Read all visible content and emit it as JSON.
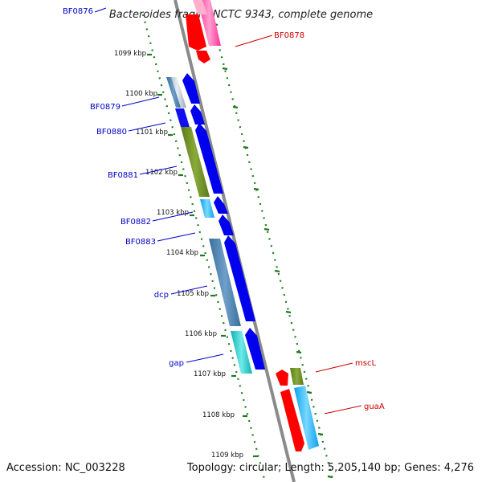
{
  "title": "Bacteroides fragilis NCTC 9343, complete genome",
  "footer": {
    "accession": "Accession: NC_003228",
    "topology": "Topology: circular; Length: 5,205,140 bp; Genes: 4,276"
  },
  "ticks": [
    "1099 kbp",
    "1100 kbp",
    "1101 kbp",
    "1102 kbp",
    "1103 kbp",
    "1104 kbp",
    "1105 kbp",
    "1106 kbp",
    "1107 kbp",
    "1108 kbp",
    "1109 kbp"
  ],
  "left_genes": [
    "BF0876",
    "BF0879",
    "BF0880",
    "BF0881",
    "BF0882",
    "BF0883",
    "dcp",
    "gap"
  ],
  "right_genes": [
    "BF0878",
    "mscL",
    "guaA"
  ],
  "colors": {
    "backbone": "#8a8a8a",
    "ruler": "#1e7a1e",
    "left_label": "#0000c8",
    "right_label": "#cc0000",
    "cds": "#0000ee",
    "red": "#ff0000",
    "pink": "#ff4faa",
    "steel": "#4a7fae",
    "olive": "#6b8e23",
    "sky": "#1eb4ff",
    "teal": "#20c8c8"
  }
}
